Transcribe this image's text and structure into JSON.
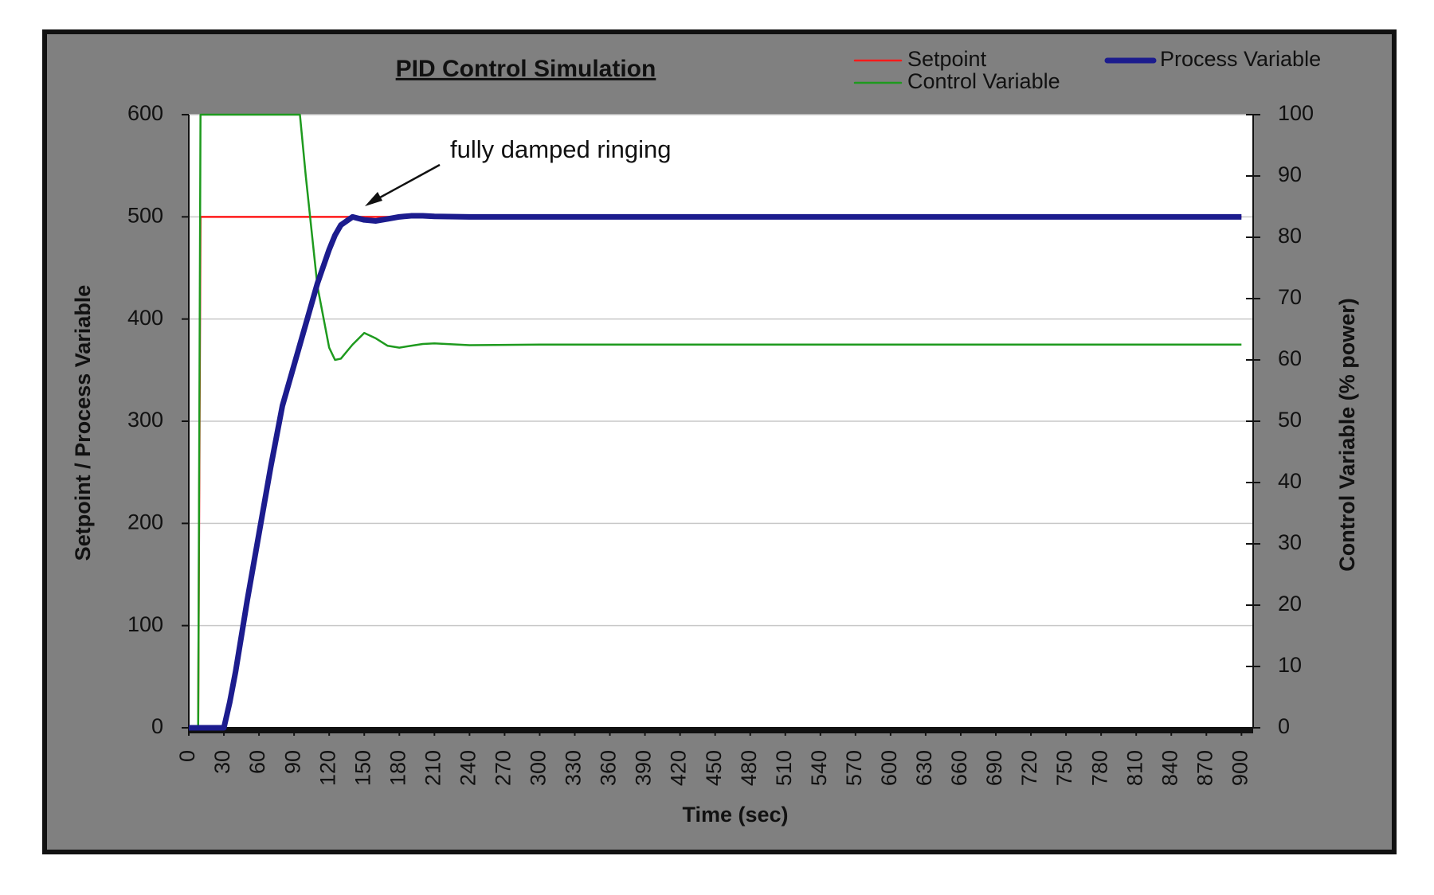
{
  "chart_data": {
    "type": "line",
    "title": "PID Control  Simulation",
    "annotation": "fully damped ringing",
    "x_label": "Time (sec)",
    "y_label": "Setpoint / Process Variable",
    "y2_label": "Control Variable (% power)",
    "x": [
      0,
      5,
      8,
      10,
      15,
      20,
      25,
      30,
      35,
      40,
      50,
      60,
      70,
      80,
      90,
      95,
      100,
      110,
      120,
      125,
      130,
      140,
      150,
      160,
      170,
      180,
      190,
      200,
      210,
      240,
      300,
      420,
      900
    ],
    "series": [
      {
        "name": "Setpoint",
        "color": "#ff1a1a",
        "values": [
          0,
          0,
          0,
          500,
          500,
          500,
          500,
          500,
          500,
          500,
          500,
          500,
          500,
          500,
          500,
          500,
          500,
          500,
          500,
          500,
          500,
          500,
          500,
          500,
          500,
          500,
          500,
          500,
          500,
          500,
          500,
          500,
          500
        ]
      },
      {
        "name": "Control Variable",
        "color": "#1e9a1e",
        "axis": "y2",
        "values": [
          0,
          0,
          0,
          100,
          100,
          100,
          100,
          100,
          100,
          100,
          100,
          100,
          100,
          100,
          100,
          100,
          90,
          72,
          62,
          60,
          60.2,
          62.5,
          64.4,
          63.5,
          62.3,
          62,
          62.3,
          62.6,
          62.7,
          62.4,
          62.5,
          62.5,
          62.5
        ]
      },
      {
        "name": "Process Variable",
        "color": "#1c1c8e",
        "values": [
          0,
          0,
          0,
          0,
          0,
          0,
          0,
          0,
          25,
          55,
          125,
          190,
          255,
          315,
          355,
          375,
          395,
          435,
          468,
          482,
          492,
          500,
          497,
          496,
          498,
          500,
          501,
          501,
          500.5,
          500,
          500,
          500,
          500
        ]
      }
    ],
    "xlim": [
      0,
      910
    ],
    "xticks": [
      0,
      30,
      60,
      90,
      120,
      150,
      180,
      210,
      240,
      270,
      300,
      330,
      360,
      390,
      420,
      450,
      480,
      510,
      540,
      570,
      600,
      630,
      660,
      690,
      720,
      750,
      780,
      810,
      840,
      870,
      900
    ],
    "ylim": [
      0,
      600
    ],
    "yticks": [
      0,
      100,
      200,
      300,
      400,
      500,
      600
    ],
    "y2lim": [
      0,
      100
    ],
    "y2ticks": [
      0,
      10,
      20,
      30,
      40,
      50,
      60,
      70,
      80,
      90,
      100
    ],
    "grid": true
  }
}
